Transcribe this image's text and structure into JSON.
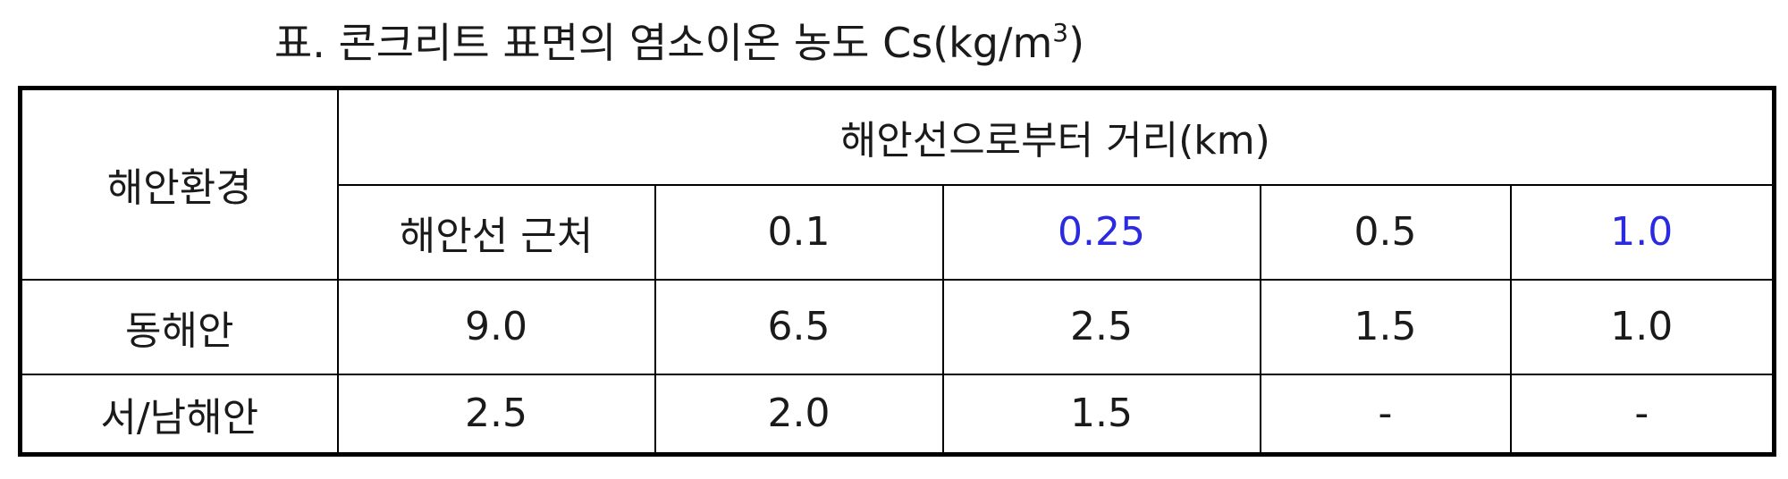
{
  "caption": {
    "prefix": "표. 콘크리트 표면의 염소이온 농도 Cs(kg/m",
    "superscript": "3",
    "suffix": ")"
  },
  "table": {
    "header": {
      "environment_label": "해안환경",
      "distance_group_label": "해안선으로부터 거리(km)",
      "distance_columns": [
        "해안선 근처",
        "0.1",
        "0.25",
        "0.5",
        "1.0"
      ],
      "highlighted_columns": [
        "0.25",
        "1.0"
      ]
    },
    "rows": [
      {
        "environment": "동해안",
        "values": [
          "9.0",
          "6.5",
          "2.5",
          "1.5",
          "1.0"
        ]
      },
      {
        "environment": "서/남해안",
        "values": [
          "2.5",
          "2.0",
          "1.5",
          "-",
          "-"
        ]
      }
    ]
  },
  "colors": {
    "highlight_text": "#2a2ae0",
    "border": "#000000",
    "text": "#1a1a1a"
  }
}
